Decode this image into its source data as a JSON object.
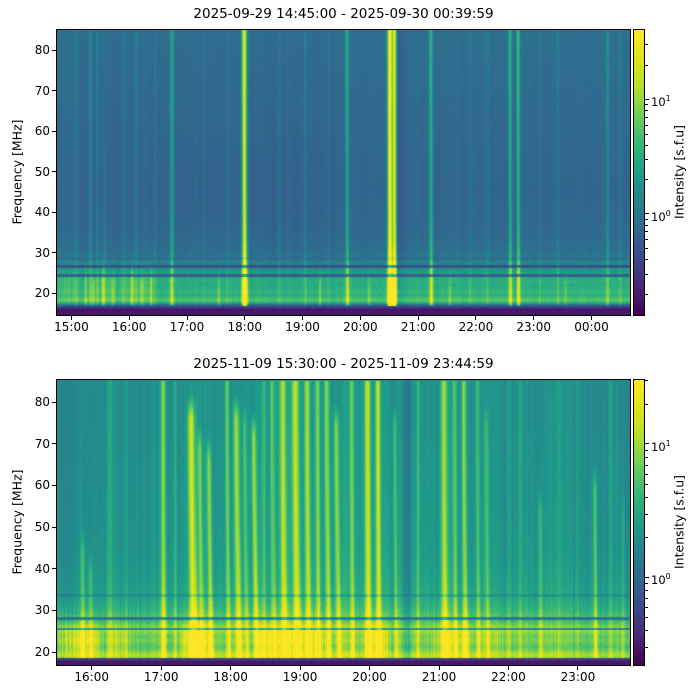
{
  "page": {
    "background": "#ffffff"
  },
  "colormap_stops": [
    [
      0.0,
      [
        68,
        1,
        84
      ]
    ],
    [
      0.1,
      [
        72,
        40,
        120
      ]
    ],
    [
      0.2,
      [
        62,
        74,
        137
      ]
    ],
    [
      0.3,
      [
        49,
        104,
        142
      ]
    ],
    [
      0.4,
      [
        38,
        130,
        142
      ]
    ],
    [
      0.5,
      [
        31,
        158,
        137
      ]
    ],
    [
      0.6,
      [
        53,
        183,
        121
      ]
    ],
    [
      0.7,
      [
        110,
        206,
        88
      ]
    ],
    [
      0.8,
      [
        181,
        222,
        43
      ]
    ],
    [
      0.9,
      [
        223,
        227,
        24
      ]
    ],
    [
      1.0,
      [
        253,
        231,
        37
      ]
    ]
  ],
  "chart_data": [
    {
      "type": "heatmap",
      "title": "2025-09-29 14:45:00 - 2025-09-30 00:39:59",
      "xlabel": "",
      "ylabel": "Frequency [MHz]",
      "colorbar_label": "Intensity [s.f.u]",
      "colormap": "viridis",
      "legend_position": "right",
      "grid": false,
      "x_ticks": [
        {
          "label": "15:00",
          "hour": 15
        },
        {
          "label": "16:00",
          "hour": 16
        },
        {
          "label": "17:00",
          "hour": 17
        },
        {
          "label": "18:00",
          "hour": 18
        },
        {
          "label": "19:00",
          "hour": 19
        },
        {
          "label": "20:00",
          "hour": 20
        },
        {
          "label": "21:00",
          "hour": 21
        },
        {
          "label": "22:00",
          "hour": 22
        },
        {
          "label": "23:00",
          "hour": 23
        },
        {
          "label": "00:00",
          "hour": 24
        }
      ],
      "y_ticks_mhz": [
        20,
        30,
        40,
        50,
        60,
        70,
        80
      ],
      "time_range_hours": [
        14.75,
        24.6664
      ],
      "freq_range_mhz": [
        14.6,
        85.0
      ],
      "colorbar_ticks": [
        {
          "base": "10",
          "exp": "1",
          "value_sfu": 10,
          "frac": 0.246
        },
        {
          "base": "10",
          "exp": "0",
          "value_sfu": 1,
          "frac": 0.648
        }
      ],
      "bottom_cutoff_mhz": 16.8,
      "rfi_lines": [
        [
          26.6,
          0.5
        ],
        [
          24.4,
          0.5
        ],
        [
          28.6,
          0.12
        ]
      ],
      "background_profile": [
        [
          14.6,
          0.06
        ],
        [
          15.5,
          0.07
        ],
        [
          16.4,
          0.1
        ],
        [
          16.8,
          0.2
        ],
        [
          17.2,
          0.38
        ],
        [
          17.6,
          0.55
        ],
        [
          18.2,
          0.66
        ],
        [
          18.8,
          0.62
        ],
        [
          19.5,
          0.56
        ],
        [
          20.3,
          0.6
        ],
        [
          21.0,
          0.57
        ],
        [
          22.0,
          0.55
        ],
        [
          23.0,
          0.57
        ],
        [
          24.0,
          0.54
        ],
        [
          25.0,
          0.5
        ],
        [
          26.0,
          0.46
        ],
        [
          27.0,
          0.42
        ],
        [
          28.5,
          0.37
        ],
        [
          30.0,
          0.335
        ],
        [
          33.0,
          0.315
        ],
        [
          38.0,
          0.3
        ],
        [
          45.0,
          0.295
        ],
        [
          55.0,
          0.3
        ],
        [
          70.0,
          0.315
        ],
        [
          85.0,
          0.33
        ]
      ],
      "column_modulation": [
        [
          14.75,
          0.005
        ],
        [
          15.5,
          0.0
        ],
        [
          16.5,
          -0.005
        ],
        [
          17.5,
          -0.008
        ],
        [
          18.5,
          -0.012
        ],
        [
          19.3,
          -0.012
        ],
        [
          20.1,
          -0.005
        ],
        [
          21.0,
          0.0
        ],
        [
          22.0,
          0.002
        ],
        [
          23.0,
          0.0
        ],
        [
          24.67,
          -0.003
        ]
      ],
      "active_band": [
        [
          14.75,
          15.2,
          0.05
        ],
        [
          15.3,
          16.5,
          0.06
        ]
      ],
      "band_f_center": 21.5,
      "band_f_sigma": 4.0,
      "bursts": [
        [
          15.08,
          0.06,
          85,
          1.0,
          0
        ],
        [
          15.25,
          0.15,
          29,
          1.0,
          0
        ],
        [
          15.33,
          0.1,
          85,
          1.2,
          0
        ],
        [
          15.38,
          0.12,
          28,
          1.0,
          0
        ],
        [
          15.45,
          0.08,
          85,
          1.0,
          0
        ],
        [
          15.55,
          0.15,
          30,
          1.0,
          0
        ],
        [
          15.58,
          0.06,
          60,
          1.0,
          0
        ],
        [
          15.72,
          0.12,
          27,
          1.0,
          0
        ],
        [
          15.9,
          0.05,
          85,
          1.0,
          0
        ],
        [
          16.05,
          0.16,
          30,
          1.0,
          0
        ],
        [
          16.12,
          0.07,
          85,
          1.0,
          0
        ],
        [
          16.22,
          0.12,
          28,
          1.0,
          0
        ],
        [
          16.38,
          0.14,
          29,
          1.0,
          0
        ],
        [
          16.45,
          0.05,
          85,
          1.0,
          0
        ],
        [
          16.74,
          0.2,
          85,
          1.4,
          0
        ],
        [
          17.3,
          0.04,
          85,
          1.0,
          0
        ],
        [
          17.55,
          0.12,
          27,
          1.0,
          0
        ],
        [
          17.7,
          0.04,
          85,
          1.0,
          0
        ],
        [
          17.99,
          0.6,
          85,
          1.8,
          0.01
        ],
        [
          18.6,
          0.04,
          85,
          1.0,
          0
        ],
        [
          19.05,
          0.06,
          85,
          1.0,
          0
        ],
        [
          19.3,
          0.12,
          28,
          1.0,
          0
        ],
        [
          19.45,
          0.04,
          85,
          1.0,
          0
        ],
        [
          19.77,
          0.22,
          85,
          1.3,
          0.01
        ],
        [
          20.15,
          0.1,
          27,
          1.0,
          0
        ],
        [
          20.51,
          0.7,
          85,
          1.7,
          0.005
        ],
        [
          20.59,
          0.62,
          85,
          1.4,
          0.005
        ],
        [
          21.22,
          0.26,
          85,
          1.3,
          0.01
        ],
        [
          21.55,
          0.1,
          27,
          1.0,
          0
        ],
        [
          21.9,
          0.04,
          85,
          1.0,
          0
        ],
        [
          22.2,
          0.05,
          85,
          1.0,
          0
        ],
        [
          22.59,
          0.26,
          85,
          1.3,
          0.01
        ],
        [
          22.73,
          0.3,
          85,
          1.3,
          0.01
        ],
        [
          23.1,
          0.05,
          85,
          1.0,
          0
        ],
        [
          23.42,
          0.08,
          85,
          1.0,
          0
        ],
        [
          23.55,
          0.08,
          27,
          1.0,
          0
        ],
        [
          24.28,
          0.12,
          85,
          1.2,
          0
        ],
        [
          24.5,
          0.06,
          85,
          1.0,
          0
        ]
      ],
      "dark_lanes": [
        [
          20.68,
          0.05,
          2.5
        ]
      ],
      "burst_low_freq_gain": 0.4,
      "noise": {
        "fine": 0.013,
        "coarse": 0.012,
        "speckle": 0.05,
        "seed": 42
      }
    },
    {
      "type": "heatmap",
      "title": "2025-11-09 15:30:00 - 2025-11-09 23:44:59",
      "xlabel": "",
      "ylabel": "Frequency [MHz]",
      "colorbar_label": "Intensity [s.f.u]",
      "colormap": "viridis",
      "legend_position": "right",
      "grid": false,
      "x_ticks": [
        {
          "label": "16:00",
          "hour": 16
        },
        {
          "label": "17:00",
          "hour": 17
        },
        {
          "label": "18:00",
          "hour": 18
        },
        {
          "label": "19:00",
          "hour": 19
        },
        {
          "label": "20:00",
          "hour": 20
        },
        {
          "label": "21:00",
          "hour": 21
        },
        {
          "label": "22:00",
          "hour": 22
        },
        {
          "label": "23:00",
          "hour": 23
        }
      ],
      "y_ticks_mhz": [
        20,
        30,
        40,
        50,
        60,
        70,
        80
      ],
      "time_range_hours": [
        15.5,
        23.7497
      ],
      "freq_range_mhz": [
        16.9,
        85.3
      ],
      "colorbar_ticks": [
        {
          "base": "10",
          "exp": "1",
          "value_sfu": 10,
          "frac": 0.228
        },
        {
          "base": "10",
          "exp": "0",
          "value_sfu": 1,
          "frac": 0.695
        }
      ],
      "bottom_cutoff_mhz": 18.5,
      "rfi_lines": [
        [
          28.0,
          0.45
        ],
        [
          25.5,
          0.45
        ],
        [
          33.5,
          0.15
        ]
      ],
      "background_profile": [
        [
          16.9,
          0.07
        ],
        [
          17.6,
          0.1
        ],
        [
          18.0,
          0.25
        ],
        [
          18.3,
          0.5
        ],
        [
          18.6,
          0.72
        ],
        [
          19.0,
          0.8
        ],
        [
          19.6,
          0.78
        ],
        [
          20.4,
          0.7
        ],
        [
          21.2,
          0.65
        ],
        [
          22.0,
          0.68
        ],
        [
          22.8,
          0.72
        ],
        [
          23.7,
          0.68
        ],
        [
          24.5,
          0.72
        ],
        [
          25.3,
          0.78
        ],
        [
          26.3,
          0.7
        ],
        [
          27.3,
          0.62
        ],
        [
          28.3,
          0.65
        ],
        [
          29.5,
          0.6
        ],
        [
          31.0,
          0.56
        ],
        [
          33.0,
          0.53
        ],
        [
          37.0,
          0.5
        ],
        [
          42.0,
          0.48
        ],
        [
          48.0,
          0.47
        ],
        [
          55.0,
          0.465
        ],
        [
          65.0,
          0.46
        ],
        [
          75.0,
          0.45
        ],
        [
          85.3,
          0.45
        ]
      ],
      "column_modulation": [
        [
          15.5,
          -0.055
        ],
        [
          15.9,
          -0.04
        ],
        [
          16.3,
          -0.02
        ],
        [
          16.8,
          0.0
        ],
        [
          17.3,
          0.01
        ],
        [
          17.8,
          0.02
        ],
        [
          18.5,
          0.035
        ],
        [
          19.2,
          0.04
        ],
        [
          19.8,
          0.03
        ],
        [
          20.3,
          0.02
        ],
        [
          20.9,
          0.025
        ],
        [
          21.4,
          0.015
        ],
        [
          21.9,
          0.0
        ],
        [
          22.4,
          -0.01
        ],
        [
          23.0,
          -0.015
        ],
        [
          23.75,
          -0.02
        ]
      ],
      "active_band": [
        [
          15.5,
          16.15,
          0.22
        ],
        [
          16.2,
          16.6,
          0.12
        ],
        [
          17.25,
          17.75,
          0.22
        ],
        [
          18.35,
          19.4,
          0.22
        ],
        [
          19.9,
          20.3,
          0.18
        ],
        [
          20.9,
          21.5,
          0.15
        ],
        [
          21.5,
          22.1,
          0.06
        ]
      ],
      "band_f_center": 22.5,
      "band_f_sigma": 4.0,
      "bursts": [
        [
          15.86,
          0.18,
          50,
          1.2,
          0.02
        ],
        [
          15.97,
          0.15,
          45,
          1.2,
          0.02
        ],
        [
          16.26,
          0.1,
          85,
          1.2,
          0
        ],
        [
          16.5,
          0.08,
          85,
          1.0,
          0
        ],
        [
          17.03,
          0.28,
          85,
          1.4,
          0.01
        ],
        [
          17.2,
          0.12,
          85,
          1.0,
          0
        ],
        [
          17.43,
          0.38,
          82,
          2.2,
          0.055
        ],
        [
          17.55,
          0.22,
          75,
          1.5,
          0.05
        ],
        [
          17.68,
          0.25,
          72,
          1.5,
          0.05
        ],
        [
          17.95,
          0.25,
          85,
          1.3,
          0.03
        ],
        [
          18.08,
          0.32,
          82,
          1.8,
          0.05
        ],
        [
          18.2,
          0.18,
          80,
          1.2,
          0.04
        ],
        [
          18.33,
          0.3,
          78,
          1.5,
          0.05
        ],
        [
          18.48,
          0.15,
          85,
          1.2,
          0
        ],
        [
          18.6,
          0.22,
          85,
          1.3,
          0.03
        ],
        [
          18.75,
          0.33,
          85,
          2.0,
          0.03
        ],
        [
          18.93,
          0.36,
          85,
          2.3,
          0.04
        ],
        [
          19.1,
          0.33,
          85,
          1.8,
          0.03
        ],
        [
          19.25,
          0.25,
          85,
          1.4,
          0.02
        ],
        [
          19.38,
          0.28,
          85,
          1.5,
          0.04
        ],
        [
          19.52,
          0.28,
          80,
          1.5,
          0.05
        ],
        [
          19.74,
          0.22,
          85,
          1.3,
          0.02
        ],
        [
          19.97,
          0.38,
          85,
          1.8,
          0.02
        ],
        [
          20.12,
          0.35,
          85,
          1.5,
          0.02
        ],
        [
          20.36,
          0.18,
          80,
          1.2,
          0.03
        ],
        [
          20.7,
          0.12,
          85,
          1.2,
          0
        ],
        [
          21.07,
          0.32,
          85,
          1.8,
          0.02
        ],
        [
          21.22,
          0.22,
          85,
          1.3,
          0.02
        ],
        [
          21.36,
          0.3,
          85,
          1.5,
          0.03
        ],
        [
          21.55,
          0.18,
          85,
          1.2,
          0.02
        ],
        [
          21.68,
          0.15,
          80,
          1.2,
          0.03
        ],
        [
          22.0,
          0.08,
          85,
          1.2,
          0
        ],
        [
          22.17,
          0.1,
          85,
          1.2,
          0
        ],
        [
          22.45,
          0.14,
          60,
          1.3,
          0.02
        ],
        [
          22.72,
          0.08,
          85,
          1.0,
          0
        ],
        [
          23.0,
          0.06,
          85,
          1.0,
          0
        ],
        [
          23.24,
          0.22,
          65,
          1.2,
          0.02
        ],
        [
          23.47,
          0.1,
          85,
          1.0,
          0
        ],
        [
          23.65,
          0.08,
          60,
          1.0,
          0
        ]
      ],
      "dark_lanes": [
        [
          20.54,
          0.1,
          2.8
        ]
      ],
      "burst_low_freq_gain": 0.55,
      "noise": {
        "fine": 0.035,
        "coarse": 0.028,
        "speckle": 0.06,
        "seed": 99
      }
    }
  ]
}
